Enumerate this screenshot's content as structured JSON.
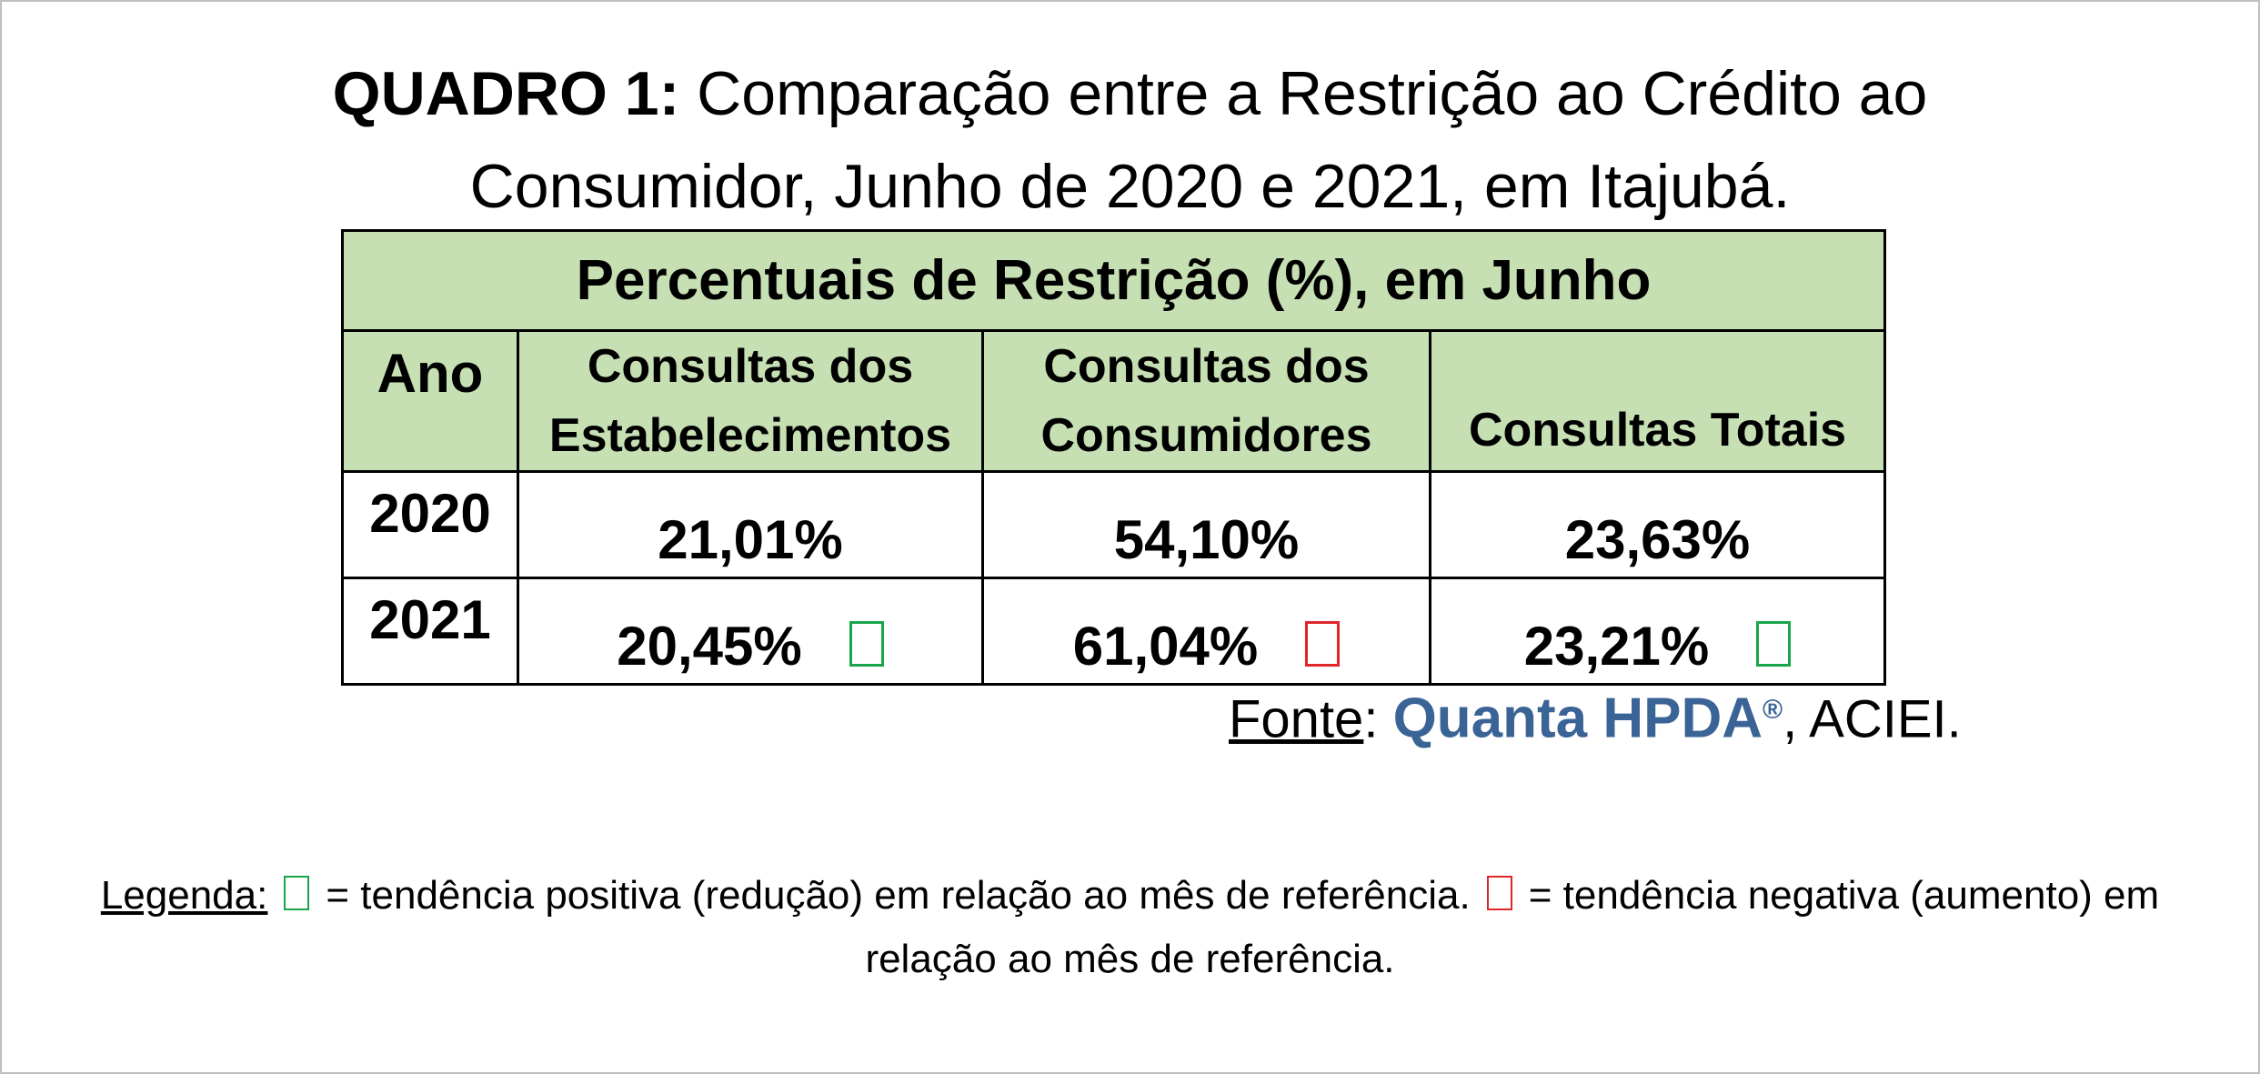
{
  "title": {
    "bold": "QUADRO 1:",
    "line1": " Comparação entre a Restrição ao Crédito ao",
    "line2": "Consumidor, Junho de 2020 e 2021, em Itajubá."
  },
  "table": {
    "header_main": "Percentuais de Restrição (%), em Junho",
    "col_ano": "Ano",
    "col_estab_1": "Consultas dos",
    "col_estab_2": "Estabelecimentos",
    "col_cons_1": "Consultas dos",
    "col_cons_2": "Consumidores",
    "col_total": "Consultas Totais",
    "rows": [
      {
        "year": "2020",
        "estab": "21,01%",
        "cons": "54,10%",
        "total": "23,63%"
      },
      {
        "year": "2021",
        "estab": "20,45%",
        "cons": "61,04%",
        "total": "23,21%"
      }
    ]
  },
  "fonte": {
    "label": "Fonte",
    "sep": ": ",
    "brand": "Quanta HPDA",
    "reg": "®",
    "rest": ", ACIEI."
  },
  "legend": {
    "label": "Legenda:",
    "positive": "= tendência positiva (redução) em relação ao mês de referência.",
    "negative": "= tendência negativa (aumento) em",
    "line2": "relação ao mês de referência."
  },
  "colors": {
    "header_bg": "#c6e0b4",
    "positive": "#1aa54b",
    "negative": "#e0262b",
    "brand": "#3a6396"
  },
  "icons": {
    "positive_trend": "green-square-icon",
    "negative_trend": "red-square-icon"
  }
}
